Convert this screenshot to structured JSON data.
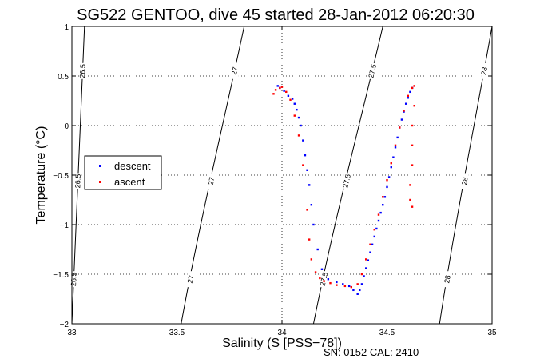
{
  "chart_data": {
    "type": "scatter",
    "title": "SG522 GENTOO, dive 45 started 28-Jan-2012 06:20:30",
    "xlabel": "Salinity (S [PSS−78])",
    "ylabel": "Temperature (°C)",
    "xlim": [
      33,
      35
    ],
    "ylim": [
      -2,
      1
    ],
    "xticks": [
      33,
      33.5,
      34,
      34.5,
      35
    ],
    "xtick_labels": [
      "33",
      "33.5",
      "34",
      "34.5",
      "35"
    ],
    "yticks": [
      -2,
      -1.5,
      -1,
      -0.5,
      0,
      0.5,
      1
    ],
    "ytick_labels": [
      "−2",
      "−1.5",
      "−1",
      "−0.5",
      "0",
      "0.5",
      "1"
    ],
    "grid": true,
    "grid_style": "dotted",
    "legend_position": "left",
    "series": [
      {
        "name": "descent",
        "color": "#0000ff",
        "x": [
          34.62,
          34.61,
          34.6,
          34.59,
          34.58,
          34.57,
          34.56,
          34.55,
          34.54,
          34.53,
          34.52,
          34.51,
          34.5,
          34.49,
          34.48,
          34.47,
          34.46,
          34.45,
          34.44,
          34.43,
          34.42,
          34.41,
          34.4,
          34.39,
          34.38,
          34.37,
          34.36,
          34.34,
          34.32,
          34.29,
          34.26,
          34.22,
          34.19,
          34.17,
          34.15,
          34.14,
          34.13,
          34.12,
          34.11,
          34.1,
          34.09,
          34.08,
          34.07,
          34.06,
          34.05,
          34.03,
          34.01,
          33.99,
          33.98
        ],
        "y": [
          0.38,
          0.34,
          0.28,
          0.22,
          0.14,
          0.06,
          -0.02,
          -0.12,
          -0.22,
          -0.32,
          -0.42,
          -0.52,
          -0.62,
          -0.72,
          -0.8,
          -0.88,
          -0.96,
          -1.04,
          -1.12,
          -1.2,
          -1.28,
          -1.36,
          -1.44,
          -1.52,
          -1.6,
          -1.66,
          -1.7,
          -1.66,
          -1.62,
          -1.6,
          -1.58,
          -1.55,
          -1.45,
          -1.25,
          -1.0,
          -0.8,
          -0.6,
          -0.45,
          -0.3,
          -0.15,
          0.0,
          0.08,
          0.16,
          0.22,
          0.27,
          0.3,
          0.35,
          0.38,
          0.4
        ]
      },
      {
        "name": "ascent",
        "color": "#ff0000",
        "x": [
          33.96,
          33.97,
          33.99,
          34.0,
          34.02,
          34.04,
          34.06,
          34.08,
          34.1,
          34.12,
          34.13,
          34.14,
          34.16,
          34.18,
          34.2,
          34.23,
          34.26,
          34.3,
          34.33,
          34.36,
          34.38,
          34.4,
          34.42,
          34.44,
          34.46,
          34.48,
          34.5,
          34.52,
          34.54,
          34.56,
          34.58,
          34.6,
          34.62,
          34.63,
          34.63,
          34.62,
          34.62,
          34.62,
          34.61,
          34.61,
          34.62
        ],
        "y": [
          0.32,
          0.36,
          0.38,
          0.39,
          0.34,
          0.26,
          0.1,
          -0.1,
          -0.4,
          -0.85,
          -1.15,
          -1.35,
          -1.48,
          -1.54,
          -1.57,
          -1.59,
          -1.61,
          -1.62,
          -1.63,
          -1.6,
          -1.5,
          -1.35,
          -1.2,
          -1.05,
          -0.9,
          -0.72,
          -0.55,
          -0.38,
          -0.2,
          -0.02,
          0.15,
          0.3,
          0.38,
          0.4,
          0.2,
          0.0,
          -0.2,
          -0.4,
          -0.6,
          -0.75,
          -0.82
        ]
      }
    ],
    "isopycnals": [
      {
        "label": "26.5",
        "x0": 33.0,
        "x1": 33.06
      },
      {
        "label": "27",
        "x0": 33.52,
        "x1": 33.82
      },
      {
        "label": "27.5",
        "x0": 34.15,
        "x1": 34.48
      },
      {
        "label": "28",
        "x0": 34.75,
        "x1": 35.0
      }
    ]
  },
  "footer": "SN: 0152  CAL: 2410"
}
